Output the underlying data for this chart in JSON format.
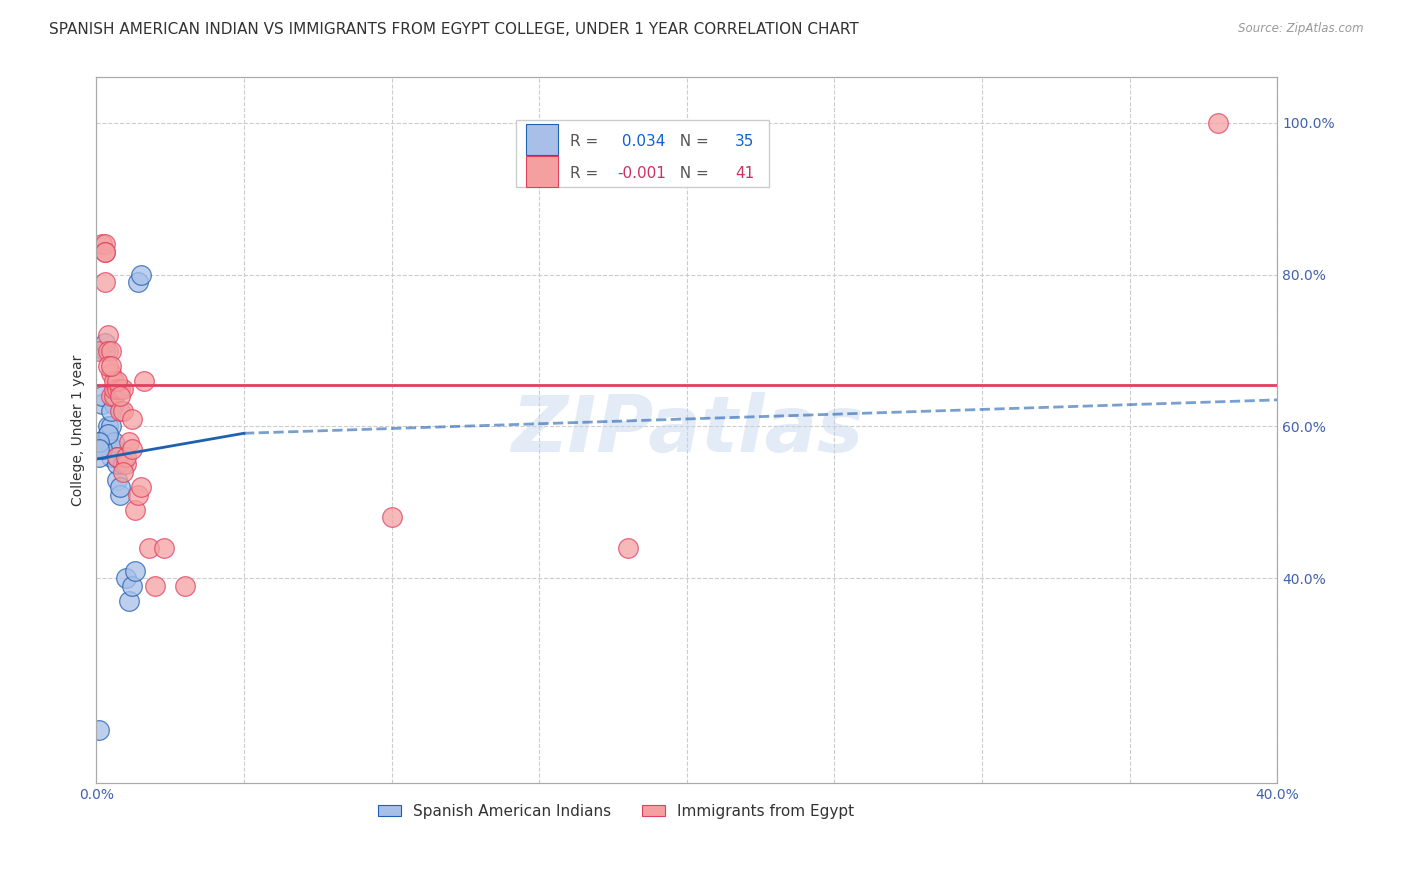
{
  "title": "SPANISH AMERICAN INDIAN VS IMMIGRANTS FROM EGYPT COLLEGE, UNDER 1 YEAR CORRELATION CHART",
  "source": "Source: ZipAtlas.com",
  "ylabel": "College, Under 1 year",
  "legend_label_blue": "Spanish American Indians",
  "legend_label_pink": "Immigrants from Egypt",
  "r_blue": "0.034",
  "n_blue": "35",
  "r_pink": "-0.001",
  "n_pink": "41",
  "xlim": [
    0.0,
    0.4
  ],
  "ylim": [
    0.13,
    1.06
  ],
  "right_yticks": [
    0.4,
    0.6,
    0.8,
    1.0
  ],
  "right_yticklabels": [
    "40.0%",
    "60.0%",
    "80.0%",
    "100.0%"
  ],
  "xticks": [
    0.0,
    0.05,
    0.1,
    0.15,
    0.2,
    0.25,
    0.3,
    0.35,
    0.4
  ],
  "xticklabels": [
    "0.0%",
    "",
    "",
    "",
    "",
    "",
    "",
    "",
    "40.0%"
  ],
  "blue_color": "#A8C0E8",
  "pink_color": "#F4A0A0",
  "trend_blue_color": "#2060B0",
  "trend_pink_color": "#E04060",
  "watermark": "ZIPatlas",
  "blue_x": [
    0.001,
    0.001,
    0.002,
    0.002,
    0.003,
    0.003,
    0.003,
    0.004,
    0.004,
    0.004,
    0.005,
    0.005,
    0.005,
    0.006,
    0.006,
    0.006,
    0.007,
    0.007,
    0.007,
    0.008,
    0.008,
    0.009,
    0.01,
    0.011,
    0.012,
    0.013,
    0.014,
    0.015,
    0.001,
    0.002,
    0.003,
    0.004,
    0.005,
    0.001,
    0.001
  ],
  "blue_y": [
    0.2,
    0.58,
    0.63,
    0.64,
    0.7,
    0.58,
    0.57,
    0.59,
    0.58,
    0.6,
    0.57,
    0.56,
    0.6,
    0.57,
    0.58,
    0.63,
    0.53,
    0.55,
    0.56,
    0.51,
    0.52,
    0.55,
    0.4,
    0.37,
    0.39,
    0.41,
    0.79,
    0.8,
    0.56,
    0.57,
    0.71,
    0.59,
    0.62,
    0.58,
    0.57
  ],
  "pink_x": [
    0.001,
    0.002,
    0.003,
    0.003,
    0.004,
    0.004,
    0.005,
    0.005,
    0.005,
    0.006,
    0.006,
    0.006,
    0.007,
    0.007,
    0.008,
    0.008,
    0.009,
    0.009,
    0.01,
    0.01,
    0.011,
    0.012,
    0.012,
    0.013,
    0.014,
    0.015,
    0.016,
    0.018,
    0.02,
    0.023,
    0.007,
    0.008,
    0.009,
    0.004,
    0.005,
    0.003,
    0.003,
    0.18,
    0.38,
    0.1,
    0.03
  ],
  "pink_y": [
    0.7,
    0.84,
    0.84,
    0.79,
    0.72,
    0.7,
    0.7,
    0.67,
    0.64,
    0.64,
    0.65,
    0.66,
    0.65,
    0.56,
    0.65,
    0.62,
    0.65,
    0.62,
    0.55,
    0.56,
    0.58,
    0.57,
    0.61,
    0.49,
    0.51,
    0.52,
    0.66,
    0.44,
    0.39,
    0.44,
    0.66,
    0.64,
    0.54,
    0.68,
    0.68,
    0.83,
    0.83,
    0.44,
    1.0,
    0.48,
    0.39
  ],
  "trend_blue_x0": 0.0,
  "trend_blue_y0": 0.557,
  "trend_blue_x1": 0.05,
  "trend_blue_y1": 0.591,
  "trend_blue_dash_x0": 0.05,
  "trend_blue_dash_y0": 0.591,
  "trend_blue_dash_x1": 0.4,
  "trend_blue_dash_y1": 0.635,
  "trend_pink_y": 0.655,
  "grid_color": "#CCCCCC",
  "background_color": "#FFFFFF",
  "title_fontsize": 11,
  "axis_label_fontsize": 10,
  "tick_fontsize": 10
}
